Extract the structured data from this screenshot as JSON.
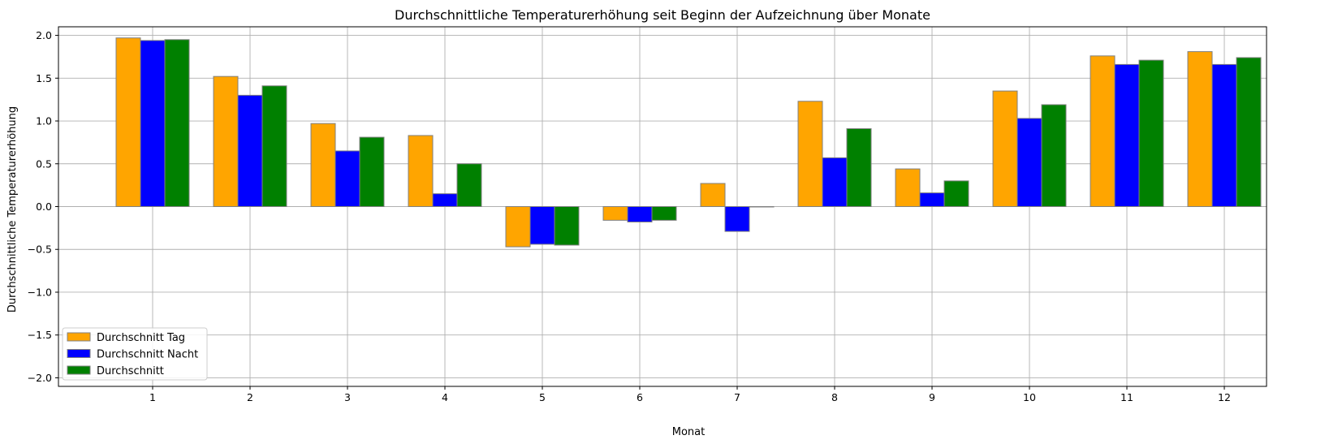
{
  "chart_data": {
    "type": "bar",
    "title": "Durchschnittliche Temperaturerhöhung seit Beginn der Aufzeichnung über Monate",
    "xlabel": "Monat",
    "ylabel": "Durchschnittliche Temperaturerhöhung",
    "categories": [
      "1",
      "2",
      "3",
      "4",
      "5",
      "6",
      "7",
      "8",
      "9",
      "10",
      "11",
      "12"
    ],
    "ylim": [
      -2.1,
      2.1
    ],
    "yticks": [
      2.0,
      1.5,
      1.0,
      0.5,
      0.0,
      -0.5,
      -1.0,
      -1.5,
      -2.0
    ],
    "ytick_labels": [
      "2.0",
      "1.5",
      "1.0",
      "0.5",
      "0.0",
      "−0.5",
      "−1.0",
      "−1.5",
      "−2.0"
    ],
    "grid": true,
    "legend_position": "lower-left",
    "series": [
      {
        "name": "Durchschnitt Tag",
        "color": "#ffa500",
        "values": [
          1.97,
          1.52,
          0.97,
          0.83,
          -0.47,
          -0.16,
          0.27,
          1.23,
          0.44,
          1.35,
          1.76,
          1.81
        ]
      },
      {
        "name": "Durchschnitt Nacht",
        "color": "#0000ff",
        "values": [
          1.94,
          1.3,
          0.65,
          0.15,
          -0.44,
          -0.18,
          -0.29,
          0.57,
          0.16,
          1.03,
          1.66,
          1.66
        ]
      },
      {
        "name": "Durchschnitt",
        "color": "#008000",
        "values": [
          1.95,
          1.41,
          0.81,
          0.5,
          -0.45,
          -0.16,
          0.0,
          0.91,
          0.3,
          1.19,
          1.71,
          1.74
        ]
      }
    ]
  }
}
